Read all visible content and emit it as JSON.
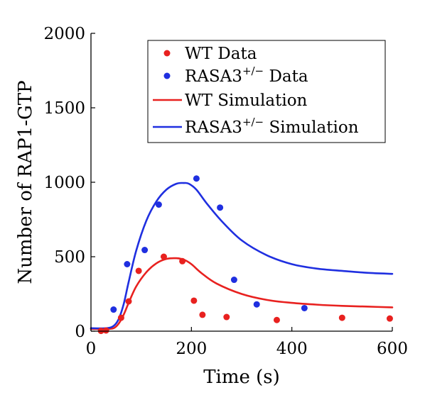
{
  "chart_data": {
    "type": "line",
    "xlabel": "Time (s)",
    "ylabel": "Number of RAP1-GTP",
    "xlim": [
      0,
      600
    ],
    "ylim": [
      0,
      2000
    ],
    "x_ticks": [
      "0",
      "200",
      "400",
      "600"
    ],
    "y_ticks": [
      "0",
      "500",
      "1000",
      "1500",
      "2000"
    ],
    "grid": false,
    "legend_position": "top-right",
    "legend": [
      {
        "key": "wt_data",
        "base": "WT Data",
        "sup": "",
        "rest": ""
      },
      {
        "key": "rasa3_data",
        "base": "RASA3",
        "sup": "+/−",
        "rest": " Data"
      },
      {
        "key": "wt_sim",
        "base": "WT Simulation",
        "sup": "",
        "rest": ""
      },
      {
        "key": "rasa3_sim",
        "base": "RASA3",
        "sup": "+/−",
        "rest": " Simulation"
      }
    ],
    "series": [
      {
        "key": "wt_data",
        "type": "scatter",
        "color": "#e8211f",
        "x": [
          20,
          30,
          60,
          75,
          95,
          145,
          182,
          205,
          222,
          270,
          370,
          500,
          595
        ],
        "y": [
          2,
          5,
          90,
          200,
          405,
          500,
          470,
          205,
          110,
          95,
          75,
          90,
          85
        ]
      },
      {
        "key": "rasa3_data",
        "type": "scatter",
        "color": "#1f2fe0",
        "x": [
          45,
          72,
          107,
          135,
          210,
          257,
          285,
          330,
          425
        ],
        "y": [
          145,
          450,
          545,
          850,
          1025,
          830,
          345,
          180,
          155
        ]
      },
      {
        "key": "wt_sim",
        "type": "line",
        "color": "#e8211f",
        "x": [
          0,
          30,
          45,
          55,
          65,
          75,
          90,
          110,
          130,
          150,
          170,
          185,
          200,
          220,
          250,
          300,
          350,
          400,
          450,
          500,
          550,
          600
        ],
        "y": [
          15,
          15,
          20,
          50,
          110,
          190,
          300,
          395,
          455,
          485,
          490,
          480,
          450,
          390,
          320,
          250,
          210,
          190,
          178,
          170,
          165,
          160
        ]
      },
      {
        "key": "rasa3_sim",
        "type": "line",
        "color": "#1f2fe0",
        "x": [
          0,
          30,
          45,
          55,
          65,
          75,
          90,
          110,
          130,
          150,
          170,
          185,
          195,
          210,
          230,
          260,
          300,
          350,
          400,
          450,
          500,
          550,
          600
        ],
        "y": [
          20,
          20,
          35,
          80,
          180,
          330,
          540,
          740,
          870,
          950,
          990,
          995,
          990,
          950,
          860,
          740,
          610,
          510,
          450,
          420,
          405,
          392,
          385
        ]
      }
    ]
  }
}
